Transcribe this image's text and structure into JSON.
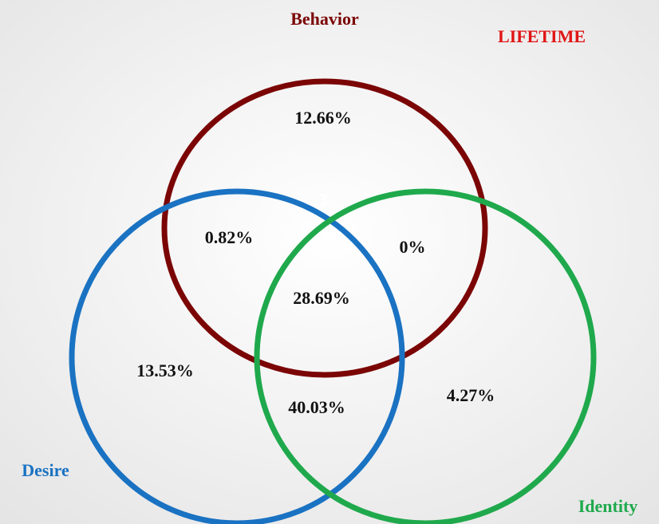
{
  "title": "LIFETIME",
  "sets": [
    {
      "label": "Behavior"
    },
    {
      "label": "Desire"
    },
    {
      "label": "Identity"
    }
  ],
  "regions": [
    {
      "label": "12.66%"
    },
    {
      "label": "0.82%"
    },
    {
      "label": "0%"
    },
    {
      "label": "28.69%"
    },
    {
      "label": "13.53%"
    },
    {
      "label": "40.03%"
    },
    {
      "label": "4.27%"
    }
  ],
  "marker": "3"
}
